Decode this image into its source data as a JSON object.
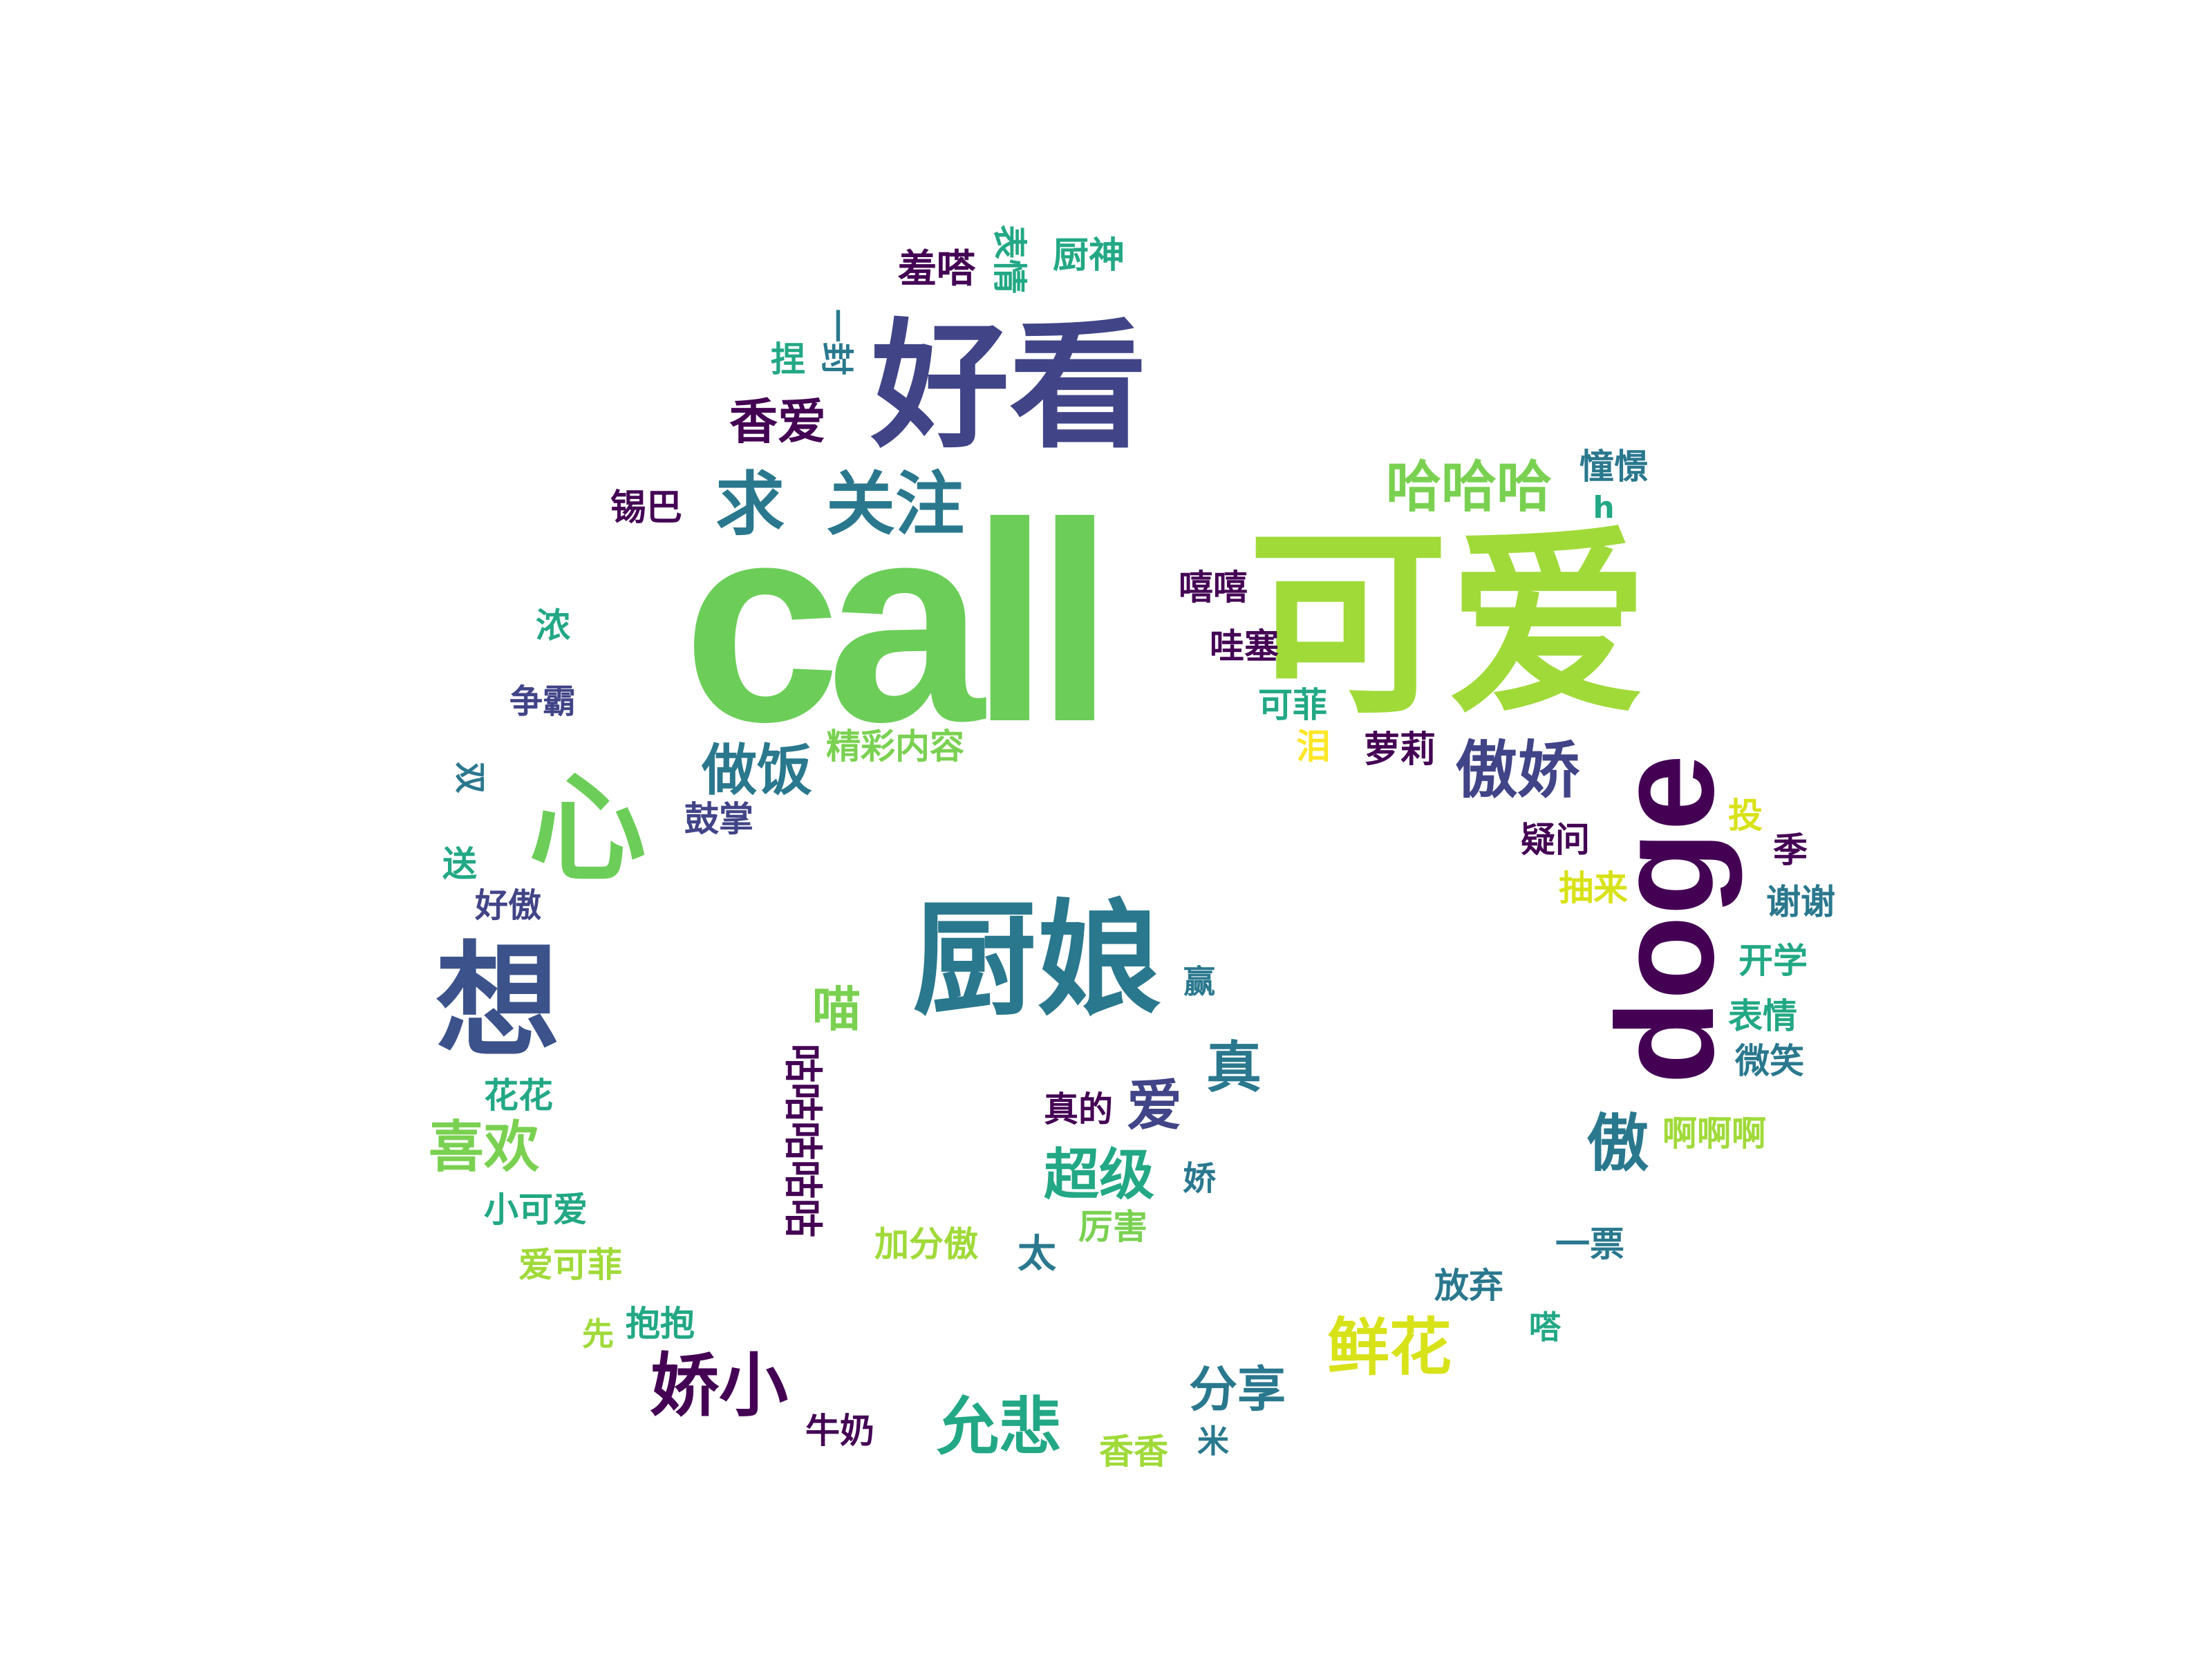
{
  "palette": {
    "dark_purple": "#440154",
    "indigo": "#414487",
    "blue_teal": "#2a788e",
    "teal": "#22a884",
    "green": "#7ad151",
    "yellow_green": "#a0da39",
    "yellow": "#fde725",
    "background": "#ffffff"
  },
  "words": [
    {
      "id": "call",
      "text": "call",
      "color": "#6cce59"
    },
    {
      "id": "keai",
      "text": "可爱",
      "color": "#a0da39"
    },
    {
      "id": "haokan",
      "text": "好看",
      "color": "#414487"
    },
    {
      "id": "doge",
      "text": "doge",
      "color": "#440154"
    },
    {
      "id": "chuniang",
      "text": "厨娘",
      "color": "#2a788e"
    },
    {
      "id": "xiang",
      "text": "想",
      "color": "#3b528b"
    },
    {
      "id": "xin",
      "text": "心",
      "color": "#6cce59"
    },
    {
      "id": "qiu",
      "text": "求",
      "color": "#2a788e"
    },
    {
      "id": "guanzhu",
      "text": "关注",
      "color": "#2a788e"
    },
    {
      "id": "hahaha",
      "text": "哈哈哈",
      "color": "#7ad151"
    },
    {
      "id": "aojiao",
      "text": "傲娇",
      "color": "#414487"
    },
    {
      "id": "zuofan",
      "text": "做饭",
      "color": "#2a788e"
    },
    {
      "id": "jiaoxiao",
      "text": "娇小",
      "color": "#440154"
    },
    {
      "id": "yunbei",
      "text": "允悲",
      "color": "#22a884"
    },
    {
      "id": "xianhua",
      "text": "鲜花",
      "color": "#d8e219"
    },
    {
      "id": "fenxiang",
      "text": "分享",
      "color": "#2a788e"
    },
    {
      "id": "xihuan",
      "text": "喜欢",
      "color": "#7ad151"
    },
    {
      "id": "xiangai",
      "text": "香爱",
      "color": "#440154"
    },
    {
      "id": "ao",
      "text": "傲",
      "color": "#2a788e"
    },
    {
      "id": "chaoji",
      "text": "超级",
      "color": "#22a884"
    },
    {
      "id": "zhen",
      "text": "真",
      "color": "#2a788e"
    },
    {
      "id": "ai",
      "text": "爱",
      "color": "#414487"
    },
    {
      "id": "miao",
      "text": "喵",
      "color": "#7ad151"
    },
    {
      "id": "gugu",
      "text": "咕咕咕咕咕",
      "color": "#440154"
    },
    {
      "id": "xiuda",
      "text": "羞嗒",
      "color": "#440154"
    },
    {
      "id": "biaoqing_top",
      "text": "表情",
      "color": "#22a884"
    },
    {
      "id": "chushen",
      "text": "厨神",
      "color": "#22a884"
    },
    {
      "id": "nie",
      "text": "捏",
      "color": "#22a884"
    },
    {
      "id": "yike",
      "text": "一封",
      "color": "#2a788e"
    },
    {
      "id": "xiba",
      "text": "锡巴",
      "color": "#440154"
    },
    {
      "id": "xixi",
      "text": "嘻嘻",
      "color": "#440154"
    },
    {
      "id": "wasai",
      "text": "哇塞",
      "color": "#440154"
    },
    {
      "id": "kefei",
      "text": "可菲",
      "color": "#22a884"
    },
    {
      "id": "lei",
      "text": "泪",
      "color": "#fde725"
    },
    {
      "id": "luoli",
      "text": "萝莉",
      "color": "#440154"
    },
    {
      "id": "chonghuang",
      "text": "憧憬",
      "color": "#2a788e"
    },
    {
      "id": "h",
      "text": "h",
      "color": "#22a884"
    },
    {
      "id": "nong",
      "text": "浓",
      "color": "#22a884"
    },
    {
      "id": "zhengba",
      "text": "争霸",
      "color": "#414487"
    },
    {
      "id": "jingcai",
      "text": "精彩内容",
      "color": "#7ad151"
    },
    {
      "id": "guzhang",
      "text": "鼓掌",
      "color": "#414487"
    },
    {
      "id": "song",
      "text": "送",
      "color": "#22a884"
    },
    {
      "id": "haoao",
      "text": "好傲",
      "color": "#414487"
    },
    {
      "id": "yiwen",
      "text": "疑问",
      "color": "#440154"
    },
    {
      "id": "choulai",
      "text": "抽来",
      "color": "#d8e219"
    },
    {
      "id": "tou",
      "text": "投",
      "color": "#d8e219"
    },
    {
      "id": "ji",
      "text": "季",
      "color": "#440154"
    },
    {
      "id": "xiexie",
      "text": "谢谢",
      "color": "#2a788e"
    },
    {
      "id": "kaixue",
      "text": "开学",
      "color": "#22a884"
    },
    {
      "id": "biaoqing",
      "text": "表情",
      "color": "#22a884"
    },
    {
      "id": "weixiao",
      "text": "微笑",
      "color": "#2a788e"
    },
    {
      "id": "aaa",
      "text": "啊啊啊",
      "color": "#a0da39"
    },
    {
      "id": "ying",
      "text": "赢",
      "color": "#2a788e"
    },
    {
      "id": "zhende",
      "text": "真的",
      "color": "#440154"
    },
    {
      "id": "jiao",
      "text": "娇",
      "color": "#2a788e"
    },
    {
      "id": "lihai",
      "text": "厉害",
      "color": "#7ad151"
    },
    {
      "id": "tai",
      "text": "太",
      "color": "#2a788e"
    },
    {
      "id": "jiafenao",
      "text": "加分傲",
      "color": "#a0da39"
    },
    {
      "id": "huahua",
      "text": "花花",
      "color": "#22a884"
    },
    {
      "id": "xiaokeai",
      "text": "小可爱",
      "color": "#22a884"
    },
    {
      "id": "aikefei",
      "text": "爱可菲",
      "color": "#a0da39"
    },
    {
      "id": "xian",
      "text": "先",
      "color": "#a0da39"
    },
    {
      "id": "baobao",
      "text": "抱抱",
      "color": "#22a884"
    },
    {
      "id": "niunai",
      "text": "牛奶",
      "color": "#440154"
    },
    {
      "id": "xiangxiang",
      "text": "香香",
      "color": "#a0da39"
    },
    {
      "id": "mi",
      "text": "米",
      "color": "#2a788e"
    },
    {
      "id": "fangqi",
      "text": "放弃",
      "color": "#2a788e"
    },
    {
      "id": "da",
      "text": "嗒",
      "color": "#22a884"
    },
    {
      "id": "yipiao",
      "text": "一票",
      "color": "#2a788e"
    },
    {
      "id": "shuang",
      "text": "双",
      "color": "#2a788e"
    }
  ]
}
